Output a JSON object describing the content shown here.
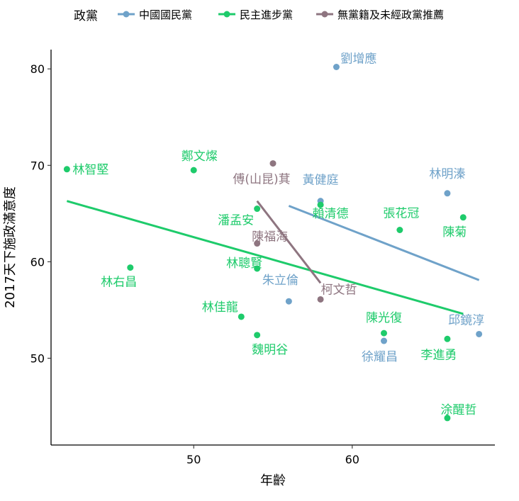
{
  "chart_data": {
    "type": "scatter",
    "xlabel": "年齡",
    "ylabel": "2017天下施政滿意度",
    "xlim": [
      41,
      69
    ],
    "ylim": [
      41,
      82
    ],
    "xticks": [
      50,
      60
    ],
    "yticks": [
      50,
      60,
      70,
      80
    ],
    "grid": false,
    "legend": {
      "title": "政黨",
      "position": "top"
    },
    "series": [
      {
        "name": "中國國民黨",
        "color": "#6FA2C9",
        "points": [
          {
            "label": "劉增應",
            "x": 59.0,
            "y": 80.2
          },
          {
            "label": "黃健庭",
            "x": 58.0,
            "y": 66.3
          },
          {
            "label": "林明溱",
            "x": 66.0,
            "y": 67.1
          },
          {
            "label": "朱立倫",
            "x": 56.0,
            "y": 55.9
          },
          {
            "label": "徐耀昌",
            "x": 62.0,
            "y": 51.8
          },
          {
            "label": "邱鏡淳",
            "x": 68.0,
            "y": 52.5
          }
        ],
        "trend": {
          "x": [
            56.0,
            68.0
          ],
          "y": [
            65.8,
            58.1
          ]
        }
      },
      {
        "name": "民主進步黨",
        "color": "#1ECB6B",
        "points": [
          {
            "label": "林智堅",
            "x": 42.0,
            "y": 69.6
          },
          {
            "label": "鄭文燦",
            "x": 50.0,
            "y": 69.5
          },
          {
            "label": "潘孟安",
            "x": 54.0,
            "y": 65.5
          },
          {
            "label": "賴清德",
            "x": 58.0,
            "y": 65.9
          },
          {
            "label": "張花冠",
            "x": 63.0,
            "y": 63.3
          },
          {
            "label": "陳菊",
            "x": 67.0,
            "y": 64.6
          },
          {
            "label": "林聰賢",
            "x": 54.0,
            "y": 59.3
          },
          {
            "label": "林右昌",
            "x": 46.0,
            "y": 59.4
          },
          {
            "label": "林佳龍",
            "x": 53.0,
            "y": 54.3
          },
          {
            "label": "魏明谷",
            "x": 54.0,
            "y": 52.4
          },
          {
            "label": "陳光復",
            "x": 62.0,
            "y": 52.6
          },
          {
            "label": "李進勇",
            "x": 66.0,
            "y": 52.0
          },
          {
            "label": "涂醒哲",
            "x": 66.0,
            "y": 43.8
          }
        ],
        "trend": {
          "x": [
            42.0,
            67.0
          ],
          "y": [
            66.3,
            54.6
          ]
        }
      },
      {
        "name": "無黨籍及未經政黨推薦",
        "color": "#8E7580",
        "points": [
          {
            "label": "傅(山昆)萁",
            "x": 55.0,
            "y": 70.2
          },
          {
            "label": "陳福海",
            "x": 54.0,
            "y": 61.9
          },
          {
            "label": "柯文哲",
            "x": 58.0,
            "y": 56.1
          }
        ],
        "trend": {
          "x": [
            54.0,
            58.0
          ],
          "y": [
            66.3,
            57.8
          ]
        }
      }
    ]
  }
}
